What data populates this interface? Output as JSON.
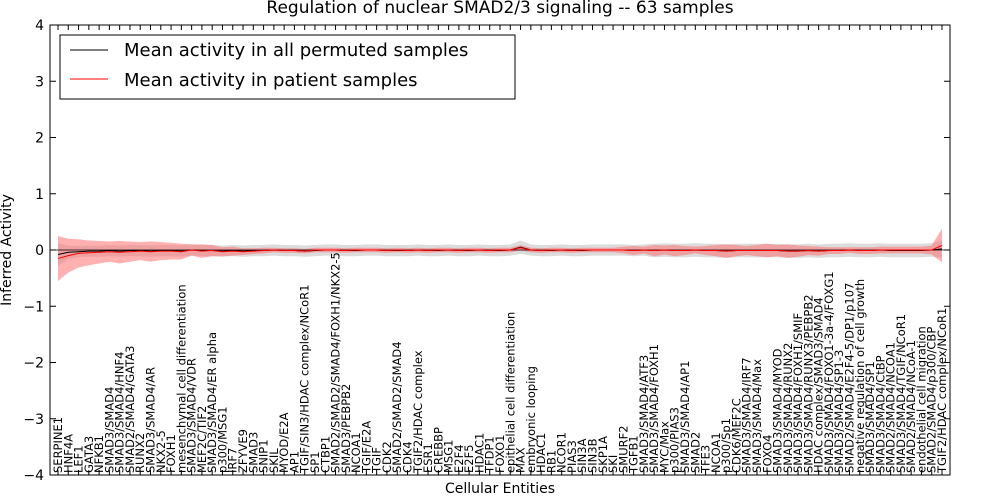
{
  "chart_data": {
    "type": "line",
    "title": "Regulation of nuclear SMAD2/3 signaling -- 63 samples",
    "xlabel": "Cellular Entities",
    "ylabel": "Inferred Activity",
    "ylim": [
      -4,
      4
    ],
    "yticks": [
      -4,
      -3,
      -2,
      -1,
      0,
      1,
      2,
      3,
      4
    ],
    "ytick_labels": [
      "−4",
      "−3",
      "−2",
      "−1",
      "0",
      "1",
      "2",
      "3",
      "4"
    ],
    "legend": {
      "location": "upper-left",
      "entries": [
        {
          "label": "Mean activity in all permuted samples",
          "color": "#000000"
        },
        {
          "label": "Mean activity in patient samples",
          "color": "#ff0000"
        }
      ]
    },
    "colors": {
      "permuted_line": "#000000",
      "permuted_band": "#bfbfbf",
      "patient_line": "#ff0000",
      "patient_band": "#ff6f6f"
    },
    "categories": [
      "SERPINE1",
      "HNF4A",
      "LEF1",
      "GATA3",
      "NFKB1",
      "SMAD3/SMAD4",
      "SMAD3/SMAD4/HNF4",
      "SMAD2/SMAD4/GATA3",
      "RUNX2",
      "SMAD3/SMAD4/AR",
      "NKX2-5",
      "FOXH1",
      "mesenchymal cell differentiation",
      "SMAD3/SMAD4/VDR",
      "MEF2C/TIF2",
      "SMAD3/SMAD4/ER alpha",
      "p300/MSG1",
      "IRF7",
      "ZFYVE9",
      "SMAD3",
      "SNIP1",
      "SKIL",
      "MYOD/E2A",
      "AP1",
      "TGIF/SIN3/HDAC complex/NCoR1",
      "SP1",
      "CTBP1",
      "SMAD2/SMAD2/SMAD4/FOXH1/NKX2-5",
      "SMAD3/PEBPB2",
      "NCOA1",
      "TGIF/E2A",
      "TGIF",
      "CDK2",
      "SMAD2/SMAD2/SMAD4",
      "CDK4",
      "TGIF2/HDAC complex",
      "ESR1",
      "CREBBP",
      "MSG1",
      "E2F4",
      "E2F5",
      "HDAC1",
      "TFDP1",
      "FOXO1",
      "epithelial cell differentiation",
      "MAX",
      "embryonic looping",
      "HDAC1",
      "RB1",
      "NCOR1",
      "PIAS3",
      "SIN3A",
      "SIN3B",
      "SKP1A",
      "SKI",
      "SMURF2",
      "TGFB1",
      "SMAD3/SMAD4/ATF3",
      "SMAD3/SMAD4/FOXH1",
      "MYC/Max",
      "p300/PIAS3",
      "SMAD3/SMAD4/AP1",
      "SMAD2",
      "TFE3",
      "NCOA1",
      "p300/Sp1",
      "CDK6/MEF2C",
      "SMAD3/SMAD4/IRF7",
      "SMAD3/SMAD4/Max",
      "FOXO4",
      "SMAD3/SMAD4/MYOD",
      "SMAD3/SMAD4/RUNX2",
      "SMAD3/SMAD4/FOXH1/SMIF",
      "SMAD3/SMAD4/RUNX3/PEBPB2",
      "HDAC complex/SMAD3/SMAD4",
      "SMAD3/SMAD4/FOXO1-3a-4/FOXG1",
      "SMAD3/SMAD4/SP1-3",
      "SMAD2/SMAD4/E2F4-5/DP1/p107",
      "negative regulation of cell growth",
      "SMAD3/SMAD4/SP1",
      "SMAD3/SMAD4/CtBP",
      "SMAD2/SMAD4/NCOA1",
      "SMAD3/SMAD4/TGIF/NCoR1",
      "SMAD2/SMAD4/NCoA-1",
      "endothelial cell migration",
      "SMAD2/SMAD4/p300/CBP",
      "TGIF2/HDAC complex/NCoR1"
    ],
    "series": [
      {
        "name": "Mean activity in all permuted samples",
        "values": [
          -0.08,
          -0.04,
          -0.03,
          -0.02,
          -0.02,
          -0.01,
          -0.02,
          -0.01,
          -0.01,
          -0.02,
          -0.01,
          -0.01,
          -0.02,
          0.0,
          -0.01,
          -0.01,
          -0.02,
          -0.01,
          -0.02,
          -0.01,
          -0.01,
          0.0,
          -0.01,
          -0.01,
          -0.02,
          -0.01,
          0.0,
          0.0,
          -0.01,
          -0.01,
          0.0,
          0.0,
          -0.01,
          -0.01,
          -0.01,
          0.0,
          -0.01,
          -0.01,
          0.0,
          -0.01,
          -0.01,
          0.0,
          -0.01,
          -0.01,
          0.0,
          0.05,
          0.0,
          -0.01,
          -0.01,
          0.0,
          -0.01,
          -0.01,
          0.0,
          0.0,
          0.0,
          0.0,
          -0.01,
          0.0,
          -0.01,
          0.0,
          -0.01,
          -0.01,
          0.0,
          -0.01,
          -0.01,
          -0.02,
          -0.01,
          -0.01,
          -0.01,
          -0.01,
          -0.01,
          -0.02,
          -0.02,
          -0.01,
          -0.02,
          -0.01,
          -0.01,
          0.0,
          -0.01,
          -0.01,
          0.0,
          -0.01,
          -0.01,
          -0.01,
          -0.01,
          0.0,
          0.02
        ],
        "band": [
          0.2,
          0.12,
          0.1,
          0.1,
          0.1,
          0.1,
          0.1,
          0.1,
          0.1,
          0.1,
          0.1,
          0.1,
          0.1,
          0.1,
          0.1,
          0.1,
          0.1,
          0.1,
          0.1,
          0.1,
          0.1,
          0.1,
          0.1,
          0.1,
          0.1,
          0.1,
          0.1,
          0.1,
          0.1,
          0.1,
          0.1,
          0.1,
          0.1,
          0.1,
          0.1,
          0.1,
          0.1,
          0.1,
          0.1,
          0.1,
          0.1,
          0.1,
          0.1,
          0.1,
          0.1,
          0.12,
          0.1,
          0.1,
          0.1,
          0.1,
          0.1,
          0.1,
          0.1,
          0.1,
          0.1,
          0.1,
          0.1,
          0.1,
          0.12,
          0.12,
          0.12,
          0.12,
          0.12,
          0.12,
          0.12,
          0.12,
          0.12,
          0.12,
          0.12,
          0.12,
          0.12,
          0.12,
          0.12,
          0.12,
          0.12,
          0.12,
          0.12,
          0.12,
          0.12,
          0.12,
          0.12,
          0.12,
          0.12,
          0.12,
          0.12,
          0.12,
          0.15
        ]
      },
      {
        "name": "Mean activity in patient samples",
        "values": [
          -0.15,
          -0.1,
          -0.06,
          -0.05,
          -0.04,
          -0.03,
          -0.04,
          -0.03,
          -0.02,
          -0.03,
          -0.02,
          -0.02,
          -0.03,
          0.0,
          -0.02,
          -0.01,
          -0.03,
          -0.02,
          -0.03,
          -0.02,
          -0.01,
          0.0,
          -0.01,
          -0.01,
          -0.02,
          0.0,
          0.0,
          0.0,
          -0.01,
          0.0,
          0.0,
          0.0,
          -0.01,
          0.0,
          -0.01,
          0.0,
          -0.01,
          0.0,
          0.0,
          -0.01,
          0.0,
          0.0,
          -0.01,
          0.0,
          0.0,
          0.04,
          0.0,
          -0.01,
          0.0,
          0.0,
          -0.01,
          0.0,
          0.0,
          0.0,
          0.0,
          0.0,
          -0.01,
          0.0,
          -0.01,
          0.0,
          -0.01,
          -0.01,
          0.0,
          -0.01,
          -0.01,
          -0.02,
          -0.01,
          -0.01,
          -0.01,
          -0.01,
          -0.01,
          -0.02,
          -0.02,
          -0.01,
          -0.02,
          -0.01,
          -0.01,
          0.0,
          -0.01,
          -0.01,
          0.0,
          0.0,
          0.0,
          0.0,
          0.0,
          0.0,
          0.08
        ],
        "band": [
          0.4,
          0.3,
          0.25,
          0.22,
          0.2,
          0.18,
          0.2,
          0.18,
          0.16,
          0.18,
          0.16,
          0.15,
          0.14,
          0.1,
          0.12,
          0.1,
          0.08,
          0.08,
          0.06,
          0.05,
          0.05,
          0.04,
          0.04,
          0.04,
          0.04,
          0.04,
          0.04,
          0.04,
          0.04,
          0.04,
          0.04,
          0.04,
          0.04,
          0.04,
          0.04,
          0.04,
          0.04,
          0.04,
          0.04,
          0.04,
          0.04,
          0.04,
          0.04,
          0.04,
          0.04,
          0.05,
          0.04,
          0.04,
          0.04,
          0.04,
          0.04,
          0.04,
          0.04,
          0.04,
          0.04,
          0.06,
          0.08,
          0.06,
          0.1,
          0.08,
          0.1,
          0.08,
          0.06,
          0.08,
          0.1,
          0.12,
          0.1,
          0.08,
          0.1,
          0.12,
          0.1,
          0.12,
          0.1,
          0.08,
          0.08,
          0.06,
          0.06,
          0.05,
          0.06,
          0.06,
          0.06,
          0.06,
          0.06,
          0.06,
          0.06,
          0.08,
          0.3
        ]
      }
    ]
  }
}
